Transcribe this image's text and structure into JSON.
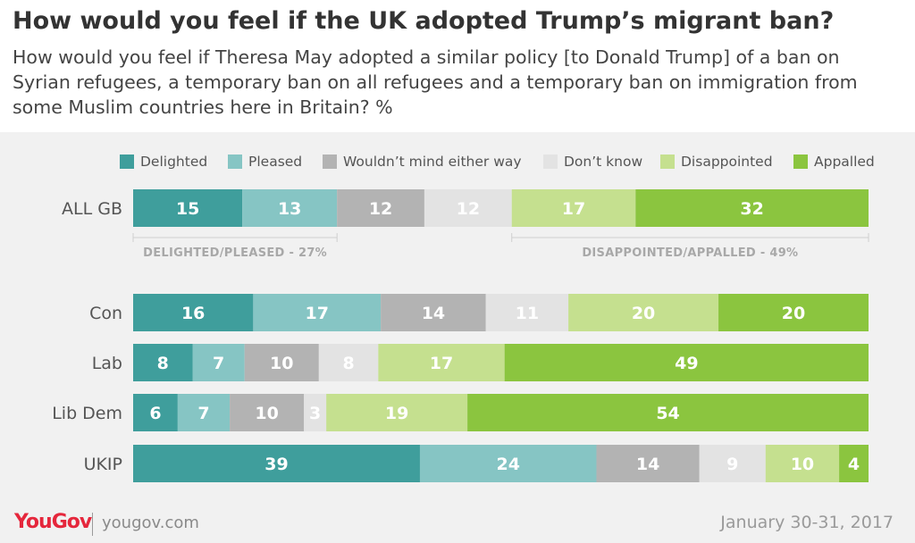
{
  "header": {
    "title": "How would you feel if the UK adopted Trump’s migrant ban?",
    "subtitle": "How would you feel if Theresa May adopted a similar policy [to Donald Trump] of a ban on Syrian refugees, a temporary ban on all refugees and a temporary ban on immigration from some Muslim countries here in Britain? %"
  },
  "chart_data": {
    "type": "bar",
    "orientation": "horizontal",
    "stacked": true,
    "categories": [
      "ALL GB",
      "Con",
      "Lab",
      "Lib Dem",
      "UKIP"
    ],
    "series": [
      {
        "name": "Delighted",
        "color": "#3f9e9c",
        "values": [
          15,
          16,
          8,
          6,
          39
        ]
      },
      {
        "name": "Pleased",
        "color": "#86c5c4",
        "values": [
          13,
          17,
          7,
          7,
          24
        ]
      },
      {
        "name": "Wouldn’t mind either way",
        "color": "#b3b3b3",
        "values": [
          12,
          14,
          10,
          10,
          14
        ]
      },
      {
        "name": "Don’t know",
        "color": "#e3e3e3",
        "values": [
          12,
          11,
          8,
          3,
          9
        ]
      },
      {
        "name": "Disappointed",
        "color": "#c5e08f",
        "values": [
          17,
          20,
          17,
          19,
          10
        ]
      },
      {
        "name": "Appalled",
        "color": "#8bc53f",
        "values": [
          32,
          20,
          49,
          54,
          4
        ]
      }
    ],
    "label_colors": [
      "#ffffff",
      "#ffffff",
      "#ffffff",
      "#ffffff",
      "#ffffff",
      "#ffffff"
    ],
    "annotations": [
      {
        "text": "DELIGHTED/PLEASED - 27%",
        "category": "ALL GB",
        "from_series": 0,
        "to_series": 1
      },
      {
        "text": "DISAPPOINTED/APPALLED - 49%",
        "category": "ALL GB",
        "from_series": 4,
        "to_series": 5
      }
    ],
    "xlim": [
      0,
      100
    ],
    "legend_position": "top"
  },
  "footer": {
    "logo": "YouGov",
    "site": "yougov.com",
    "date": "January 30-31, 2017"
  }
}
